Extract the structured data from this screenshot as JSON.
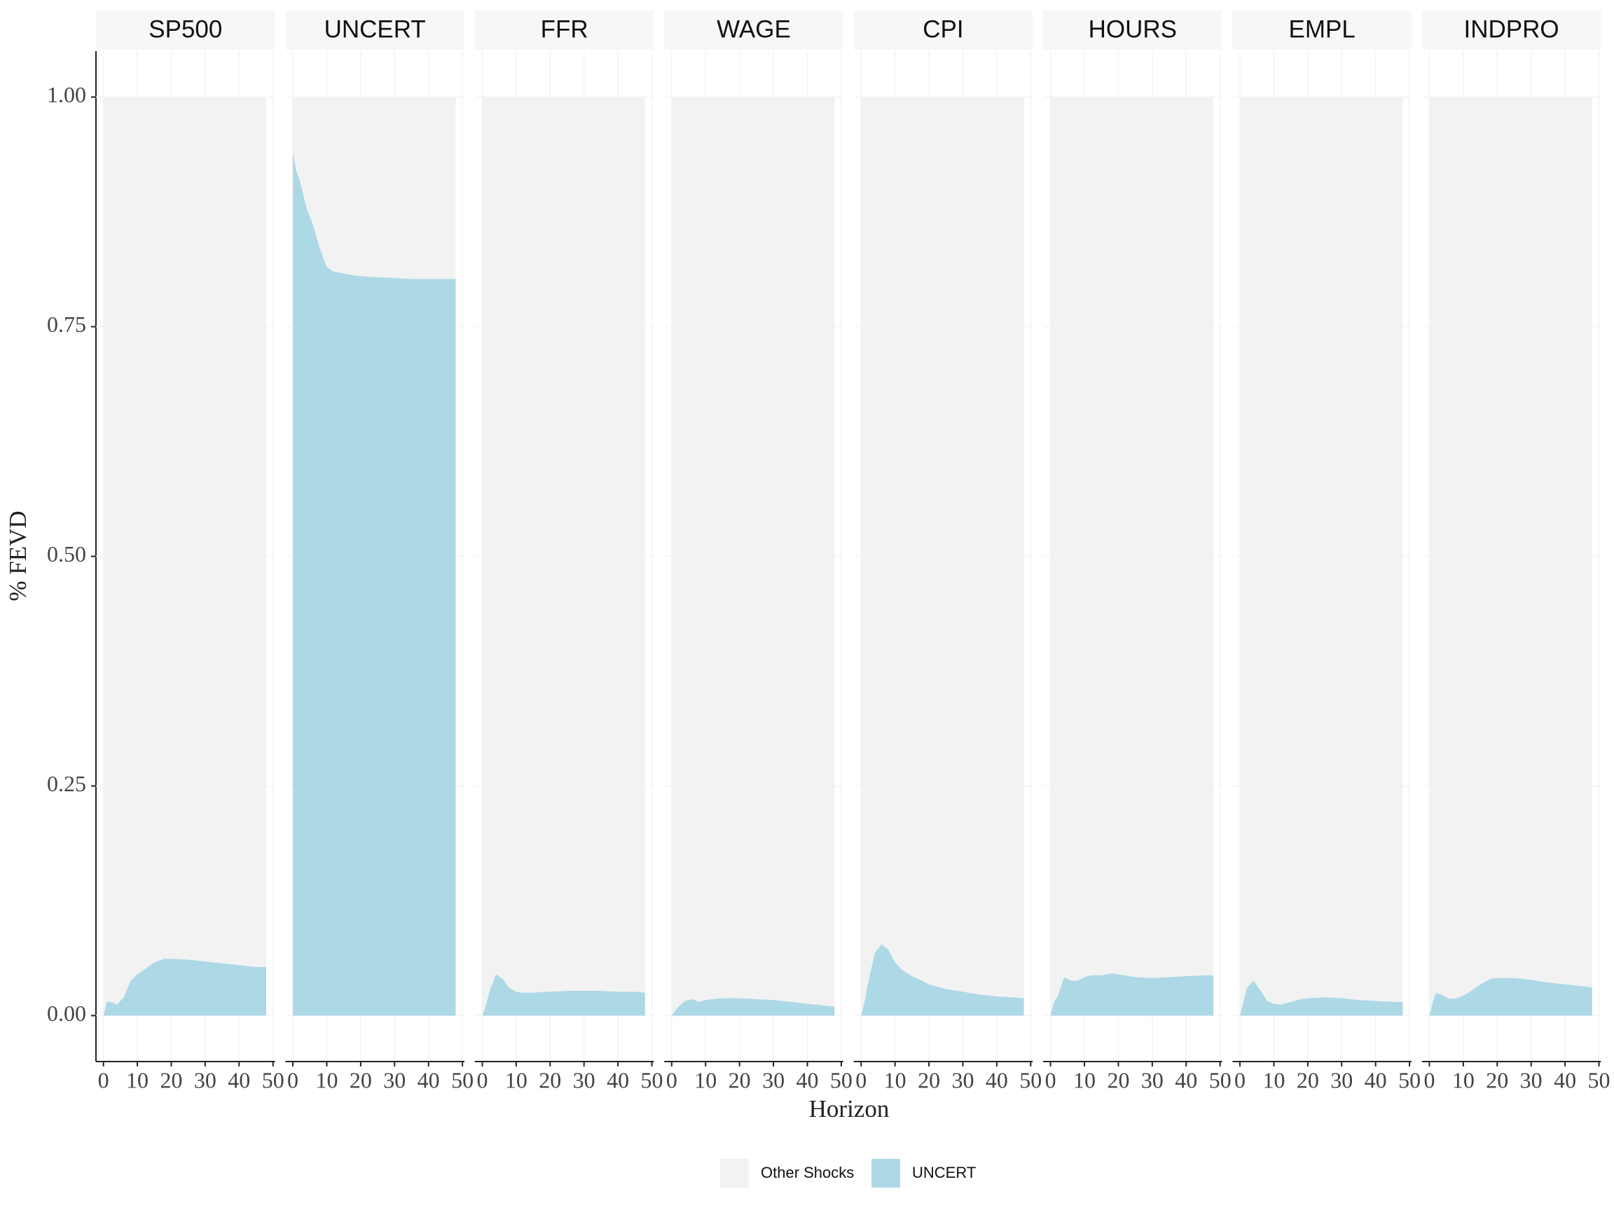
{
  "chart_data": {
    "type": "area",
    "ylabel": "% FEVD",
    "xlabel": "Horizon",
    "xlim": [
      -2.2,
      50.6
    ],
    "xticks": [
      0,
      10,
      20,
      30,
      40,
      50
    ],
    "ylim": [
      -0.05,
      1.05
    ],
    "yticks": [
      {
        "value": 0,
        "label": "0.00"
      },
      {
        "value": 0.25,
        "label": "0.25"
      },
      {
        "value": 0.5,
        "label": "0.50"
      },
      {
        "value": 0.75,
        "label": "0.75"
      },
      {
        "value": 1,
        "label": "1.00"
      }
    ],
    "grid": true,
    "legend": "bottom",
    "series": [
      {
        "name": "Other Shocks",
        "color": "#f2f2f2"
      },
      {
        "name": "UNCERT",
        "color": "#add8e6"
      }
    ],
    "x": [
      0,
      1,
      2,
      4,
      6,
      8,
      10,
      12,
      15,
      18,
      20,
      25,
      30,
      35,
      40,
      45,
      48
    ],
    "facets": [
      {
        "title": "SP500",
        "series": [
          {
            "values": [
              1,
              0.985,
              0.985,
              0.988,
              0.98,
              0.962,
              0.955,
              0.95,
              0.942,
              0.938,
              0.938,
              0.939,
              0.941,
              0.943,
              0.945,
              0.947,
              0.947
            ]
          },
          {
            "values": [
              0,
              0.015,
              0.015,
              0.012,
              0.02,
              0.038,
              0.045,
              0.05,
              0.058,
              0.062,
              0.062,
              0.061,
              0.059,
              0.057,
              0.055,
              0.053,
              0.053
            ]
          }
        ]
      },
      {
        "title": "UNCERT",
        "series": [
          {
            "values": [
              0.06,
              0.08,
              0.09,
              0.12,
              0.14,
              0.165,
              0.185,
              0.19,
              0.192,
              0.194,
              0.195,
              0.196,
              0.197,
              0.198,
              0.198,
              0.198,
              0.198
            ]
          },
          {
            "values": [
              0.94,
              0.92,
              0.91,
              0.88,
              0.86,
              0.835,
              0.815,
              0.81,
              0.808,
              0.806,
              0.805,
              0.804,
              0.803,
              0.802,
              0.802,
              0.802,
              0.802
            ]
          }
        ]
      },
      {
        "title": "FFR",
        "series": [
          {
            "values": [
              1,
              0.99,
              0.975,
              0.955,
              0.96,
              0.97,
              0.974,
              0.975,
              0.975,
              0.974,
              0.974,
              0.973,
              0.973,
              0.973,
              0.974,
              0.974,
              0.975
            ]
          },
          {
            "values": [
              0,
              0.01,
              0.025,
              0.045,
              0.04,
              0.03,
              0.026,
              0.025,
              0.025,
              0.026,
              0.026,
              0.027,
              0.027,
              0.027,
              0.026,
              0.026,
              0.025
            ]
          }
        ]
      },
      {
        "title": "WAGE",
        "series": [
          {
            "values": [
              1,
              0.995,
              0.99,
              0.984,
              0.982,
              0.985,
              0.983,
              0.982,
              0.981,
              0.981,
              0.981,
              0.982,
              0.983,
              0.985,
              0.987,
              0.989,
              0.99
            ]
          },
          {
            "values": [
              0,
              0.005,
              0.01,
              0.016,
              0.018,
              0.015,
              0.017,
              0.018,
              0.019,
              0.019,
              0.019,
              0.018,
              0.017,
              0.015,
              0.013,
              0.011,
              0.01
            ]
          }
        ]
      },
      {
        "title": "CPI",
        "series": [
          {
            "values": [
              1,
              0.985,
              0.965,
              0.932,
              0.922,
              0.928,
              0.942,
              0.95,
              0.957,
              0.962,
              0.966,
              0.971,
              0.974,
              0.977,
              0.979,
              0.98,
              0.981
            ]
          },
          {
            "values": [
              0,
              0.015,
              0.035,
              0.068,
              0.078,
              0.072,
              0.058,
              0.05,
              0.043,
              0.038,
              0.034,
              0.029,
              0.026,
              0.023,
              0.021,
              0.02,
              0.019
            ]
          }
        ]
      },
      {
        "title": "HOURS",
        "series": [
          {
            "values": [
              1,
              0.985,
              0.98,
              0.958,
              0.962,
              0.962,
              0.958,
              0.956,
              0.956,
              0.954,
              0.955,
              0.958,
              0.959,
              0.958,
              0.957,
              0.956,
              0.956
            ]
          },
          {
            "values": [
              0,
              0.015,
              0.02,
              0.042,
              0.038,
              0.038,
              0.042,
              0.044,
              0.044,
              0.046,
              0.045,
              0.042,
              0.041,
              0.042,
              0.043,
              0.044,
              0.044
            ]
          }
        ]
      },
      {
        "title": "EMPL",
        "series": [
          {
            "values": [
              1,
              0.985,
              0.97,
              0.962,
              0.972,
              0.984,
              0.987,
              0.988,
              0.985,
              0.982,
              0.981,
              0.98,
              0.981,
              0.983,
              0.984,
              0.985,
              0.985
            ]
          },
          {
            "values": [
              0,
              0.015,
              0.03,
              0.038,
              0.028,
              0.016,
              0.013,
              0.012,
              0.015,
              0.018,
              0.019,
              0.02,
              0.019,
              0.017,
              0.016,
              0.015,
              0.015
            ]
          }
        ]
      },
      {
        "title": "INDPRO",
        "series": [
          {
            "values": [
              1,
              0.985,
              0.975,
              0.978,
              0.982,
              0.981,
              0.978,
              0.974,
              0.966,
              0.96,
              0.959,
              0.959,
              0.961,
              0.964,
              0.966,
              0.968,
              0.969
            ]
          },
          {
            "values": [
              0,
              0.015,
              0.025,
              0.022,
              0.018,
              0.019,
              0.022,
              0.026,
              0.034,
              0.04,
              0.041,
              0.041,
              0.039,
              0.036,
              0.034,
              0.032,
              0.031
            ]
          }
        ]
      }
    ]
  }
}
